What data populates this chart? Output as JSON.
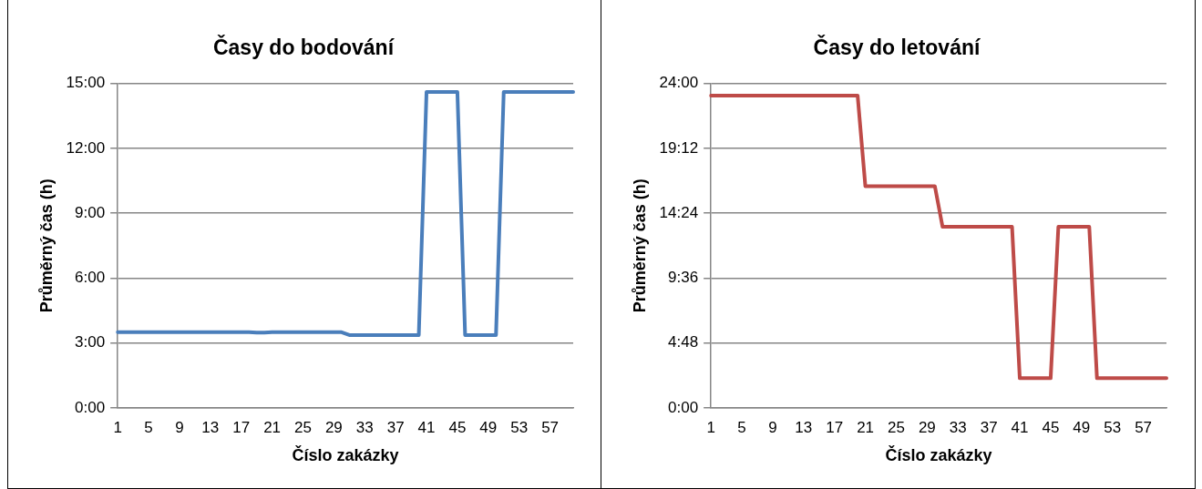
{
  "chart_data": [
    {
      "type": "line",
      "title": "Časy do bodování",
      "xlabel": "Číslo zakázky",
      "ylabel": "Průměrný čas (h)",
      "categories": [
        "1",
        null,
        null,
        null,
        "5",
        null,
        null,
        null,
        "9",
        null,
        null,
        null,
        "13",
        null,
        null,
        null,
        "17",
        null,
        null,
        null,
        "21",
        null,
        null,
        null,
        "25",
        null,
        null,
        null,
        "29",
        null,
        null,
        null,
        "33",
        null,
        null,
        null,
        "37",
        null,
        null,
        null,
        "41",
        null,
        null,
        null,
        "45",
        null,
        null,
        null,
        "49",
        null,
        null,
        null,
        "53",
        null,
        null,
        null,
        "57",
        null,
        null,
        null
      ],
      "series": [
        {
          "color": "#4a7ebb",
          "values": [
            3.5,
            3.5,
            3.5,
            3.5,
            3.5,
            3.5,
            3.5,
            3.5,
            3.5,
            3.5,
            3.5,
            3.5,
            3.5,
            3.5,
            3.5,
            3.5,
            3.5,
            3.5,
            3.48,
            3.48,
            3.5,
            3.5,
            3.5,
            3.5,
            3.5,
            3.5,
            3.5,
            3.5,
            3.5,
            3.5,
            3.37,
            3.37,
            3.37,
            3.37,
            3.37,
            3.37,
            3.37,
            3.37,
            3.37,
            3.37,
            14.6,
            14.6,
            14.6,
            14.6,
            14.6,
            3.37,
            3.37,
            3.37,
            3.37,
            3.37,
            14.6,
            14.6,
            14.6,
            14.6,
            14.6,
            14.6,
            14.6,
            14.6,
            14.6,
            14.6
          ]
        }
      ],
      "ylim": [
        0,
        15
      ],
      "yticks": [
        {
          "value": 0,
          "label": "0:00"
        },
        {
          "value": 3,
          "label": "3:00"
        },
        {
          "value": 6,
          "label": "6:00"
        },
        {
          "value": 9,
          "label": "9:00"
        },
        {
          "value": 12,
          "label": "12:00"
        },
        {
          "value": 15,
          "label": "15:00"
        }
      ],
      "grid": "y",
      "legend": false,
      "marker": "none",
      "line_style": "solid"
    },
    {
      "type": "line",
      "title": "Časy do letování",
      "xlabel": "Číslo zakázky",
      "ylabel": "Průměrný čas (h)",
      "categories": [
        "1",
        null,
        null,
        null,
        "5",
        null,
        null,
        null,
        "9",
        null,
        null,
        null,
        "13",
        null,
        null,
        null,
        "17",
        null,
        null,
        null,
        "21",
        null,
        null,
        null,
        "25",
        null,
        null,
        null,
        "29",
        null,
        null,
        null,
        "33",
        null,
        null,
        null,
        "37",
        null,
        null,
        null,
        "41",
        null,
        null,
        null,
        "45",
        null,
        null,
        null,
        "49",
        null,
        null,
        null,
        "53",
        null,
        null,
        null,
        "57",
        null,
        null,
        null
      ],
      "series": [
        {
          "color": "#be4b48",
          "values": [
            23.1,
            23.1,
            23.1,
            23.1,
            23.1,
            23.1,
            23.1,
            23.1,
            23.1,
            23.1,
            23.1,
            23.1,
            23.1,
            23.1,
            23.1,
            23.1,
            23.1,
            23.1,
            23.1,
            23.1,
            16.4,
            16.4,
            16.4,
            16.4,
            16.4,
            16.4,
            16.4,
            16.4,
            16.4,
            16.4,
            13.4,
            13.4,
            13.4,
            13.4,
            13.4,
            13.4,
            13.4,
            13.4,
            13.4,
            13.4,
            2.2,
            2.2,
            2.2,
            2.2,
            2.2,
            13.4,
            13.4,
            13.4,
            13.4,
            13.4,
            2.2,
            2.2,
            2.2,
            2.2,
            2.2,
            2.2,
            2.2,
            2.2,
            2.2,
            2.2
          ]
        }
      ],
      "ylim": [
        0,
        24
      ],
      "yticks": [
        {
          "value": 0,
          "label": "0:00"
        },
        {
          "value": 4.8,
          "label": "4:48"
        },
        {
          "value": 9.6,
          "label": "9:36"
        },
        {
          "value": 14.4,
          "label": "14:24"
        },
        {
          "value": 19.2,
          "label": "19:12"
        },
        {
          "value": 24,
          "label": "24:00"
        }
      ],
      "grid": "y",
      "legend": false,
      "marker": "none",
      "line_style": "solid"
    }
  ]
}
